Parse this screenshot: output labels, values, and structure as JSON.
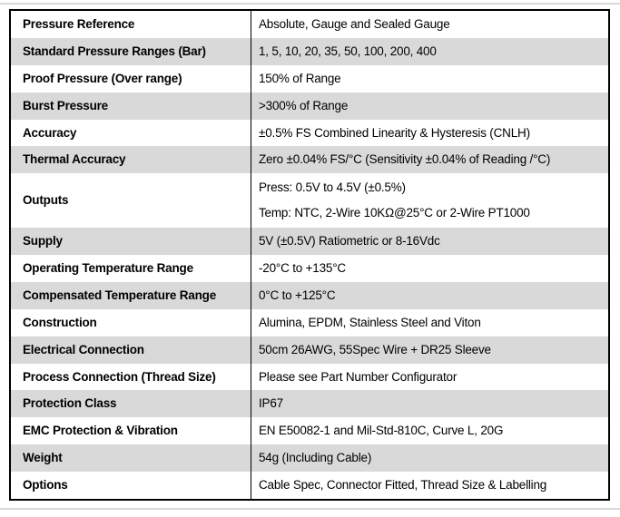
{
  "table": {
    "stripe_color": "#d9d9d9",
    "border_color": "#000000",
    "rows": [
      {
        "label": "Pressure Reference",
        "value": "Absolute, Gauge and Sealed Gauge"
      },
      {
        "label": "Standard Pressure Ranges (Bar)",
        "value": "1, 5, 10, 20, 35, 50, 100, 200, 400"
      },
      {
        "label": "Proof Pressure (Over range)",
        "value": "150% of Range"
      },
      {
        "label": "Burst Pressure",
        "value": ">300% of Range"
      },
      {
        "label": "Accuracy",
        "value": "±0.5% FS Combined Linearity & Hysteresis (CNLH)"
      },
      {
        "label": "Thermal Accuracy",
        "value": "Zero ±0.04% FS/°C (Sensitivity ±0.04% of Reading /°C)"
      },
      {
        "label": "Outputs",
        "value": "Press: 0.5V to 4.5V (±0.5%)\nTemp: NTC, 2-Wire 10KΩ@25°C or 2-Wire PT1000"
      },
      {
        "label": "Supply",
        "value": "5V (±0.5V) Ratiometric or 8-16Vdc"
      },
      {
        "label": "Operating Temperature Range",
        "value": "-20°C to +135°C"
      },
      {
        "label": "Compensated Temperature Range",
        "value": "0°C to +125°C"
      },
      {
        "label": "Construction",
        "value": "Alumina, EPDM, Stainless Steel and Viton"
      },
      {
        "label": "Electrical Connection",
        "value": "50cm 26AWG, 55Spec Wire + DR25 Sleeve"
      },
      {
        "label": "Process Connection (Thread Size)",
        "value": "Please see Part Number Configurator"
      },
      {
        "label": "Protection Class",
        "value": "IP67"
      },
      {
        "label": "EMC Protection & Vibration",
        "value": "EN E50082-1 and Mil-Std-810C, Curve L, 20G"
      },
      {
        "label": "Weight",
        "value": "54g (Including Cable)"
      },
      {
        "label": "Options",
        "value": "Cable Spec, Connector Fitted, Thread Size & Labelling"
      }
    ]
  }
}
